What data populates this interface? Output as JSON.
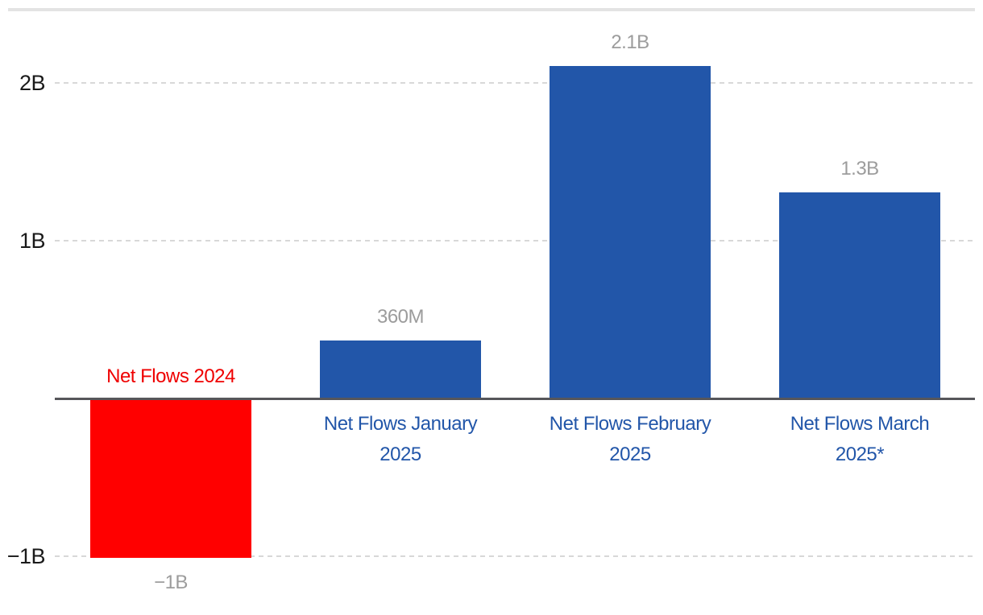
{
  "chart_data": {
    "type": "bar",
    "title": "",
    "xlabel": "",
    "ylabel": "",
    "categories": [
      "Net Flows 2024",
      "Net Flows January 2025",
      "Net Flows February 2025",
      "Net Flows March 2025*"
    ],
    "values": [
      -1.0,
      0.36,
      2.1,
      1.3
    ],
    "value_labels": [
      "−1B",
      "360M",
      "2.1B",
      "1.3B"
    ],
    "y_ticks": [
      {
        "value": 2,
        "label": "2B"
      },
      {
        "value": 1,
        "label": "1B"
      },
      {
        "value": -1,
        "label": "−1B"
      }
    ],
    "ylim": [
      -1.3,
      2.35
    ],
    "grid": "dotted horizontal gridlines at labeled ticks, none at zero",
    "legend": "none",
    "bar_colors": [
      "#ff0000",
      "#2256a9",
      "#2256a9",
      "#2256a9"
    ],
    "category_label_colors": [
      "#ef0000",
      "#2256a9",
      "#2256a9",
      "#2256a9"
    ],
    "value_label_color": "#9c9c9c"
  },
  "colors": {
    "background": "#ffffff",
    "top_rule": "#e3e3e3",
    "gridline": "#d8d8d8",
    "axis_line": "#56565a",
    "tick_label": "#1a1a1a"
  }
}
